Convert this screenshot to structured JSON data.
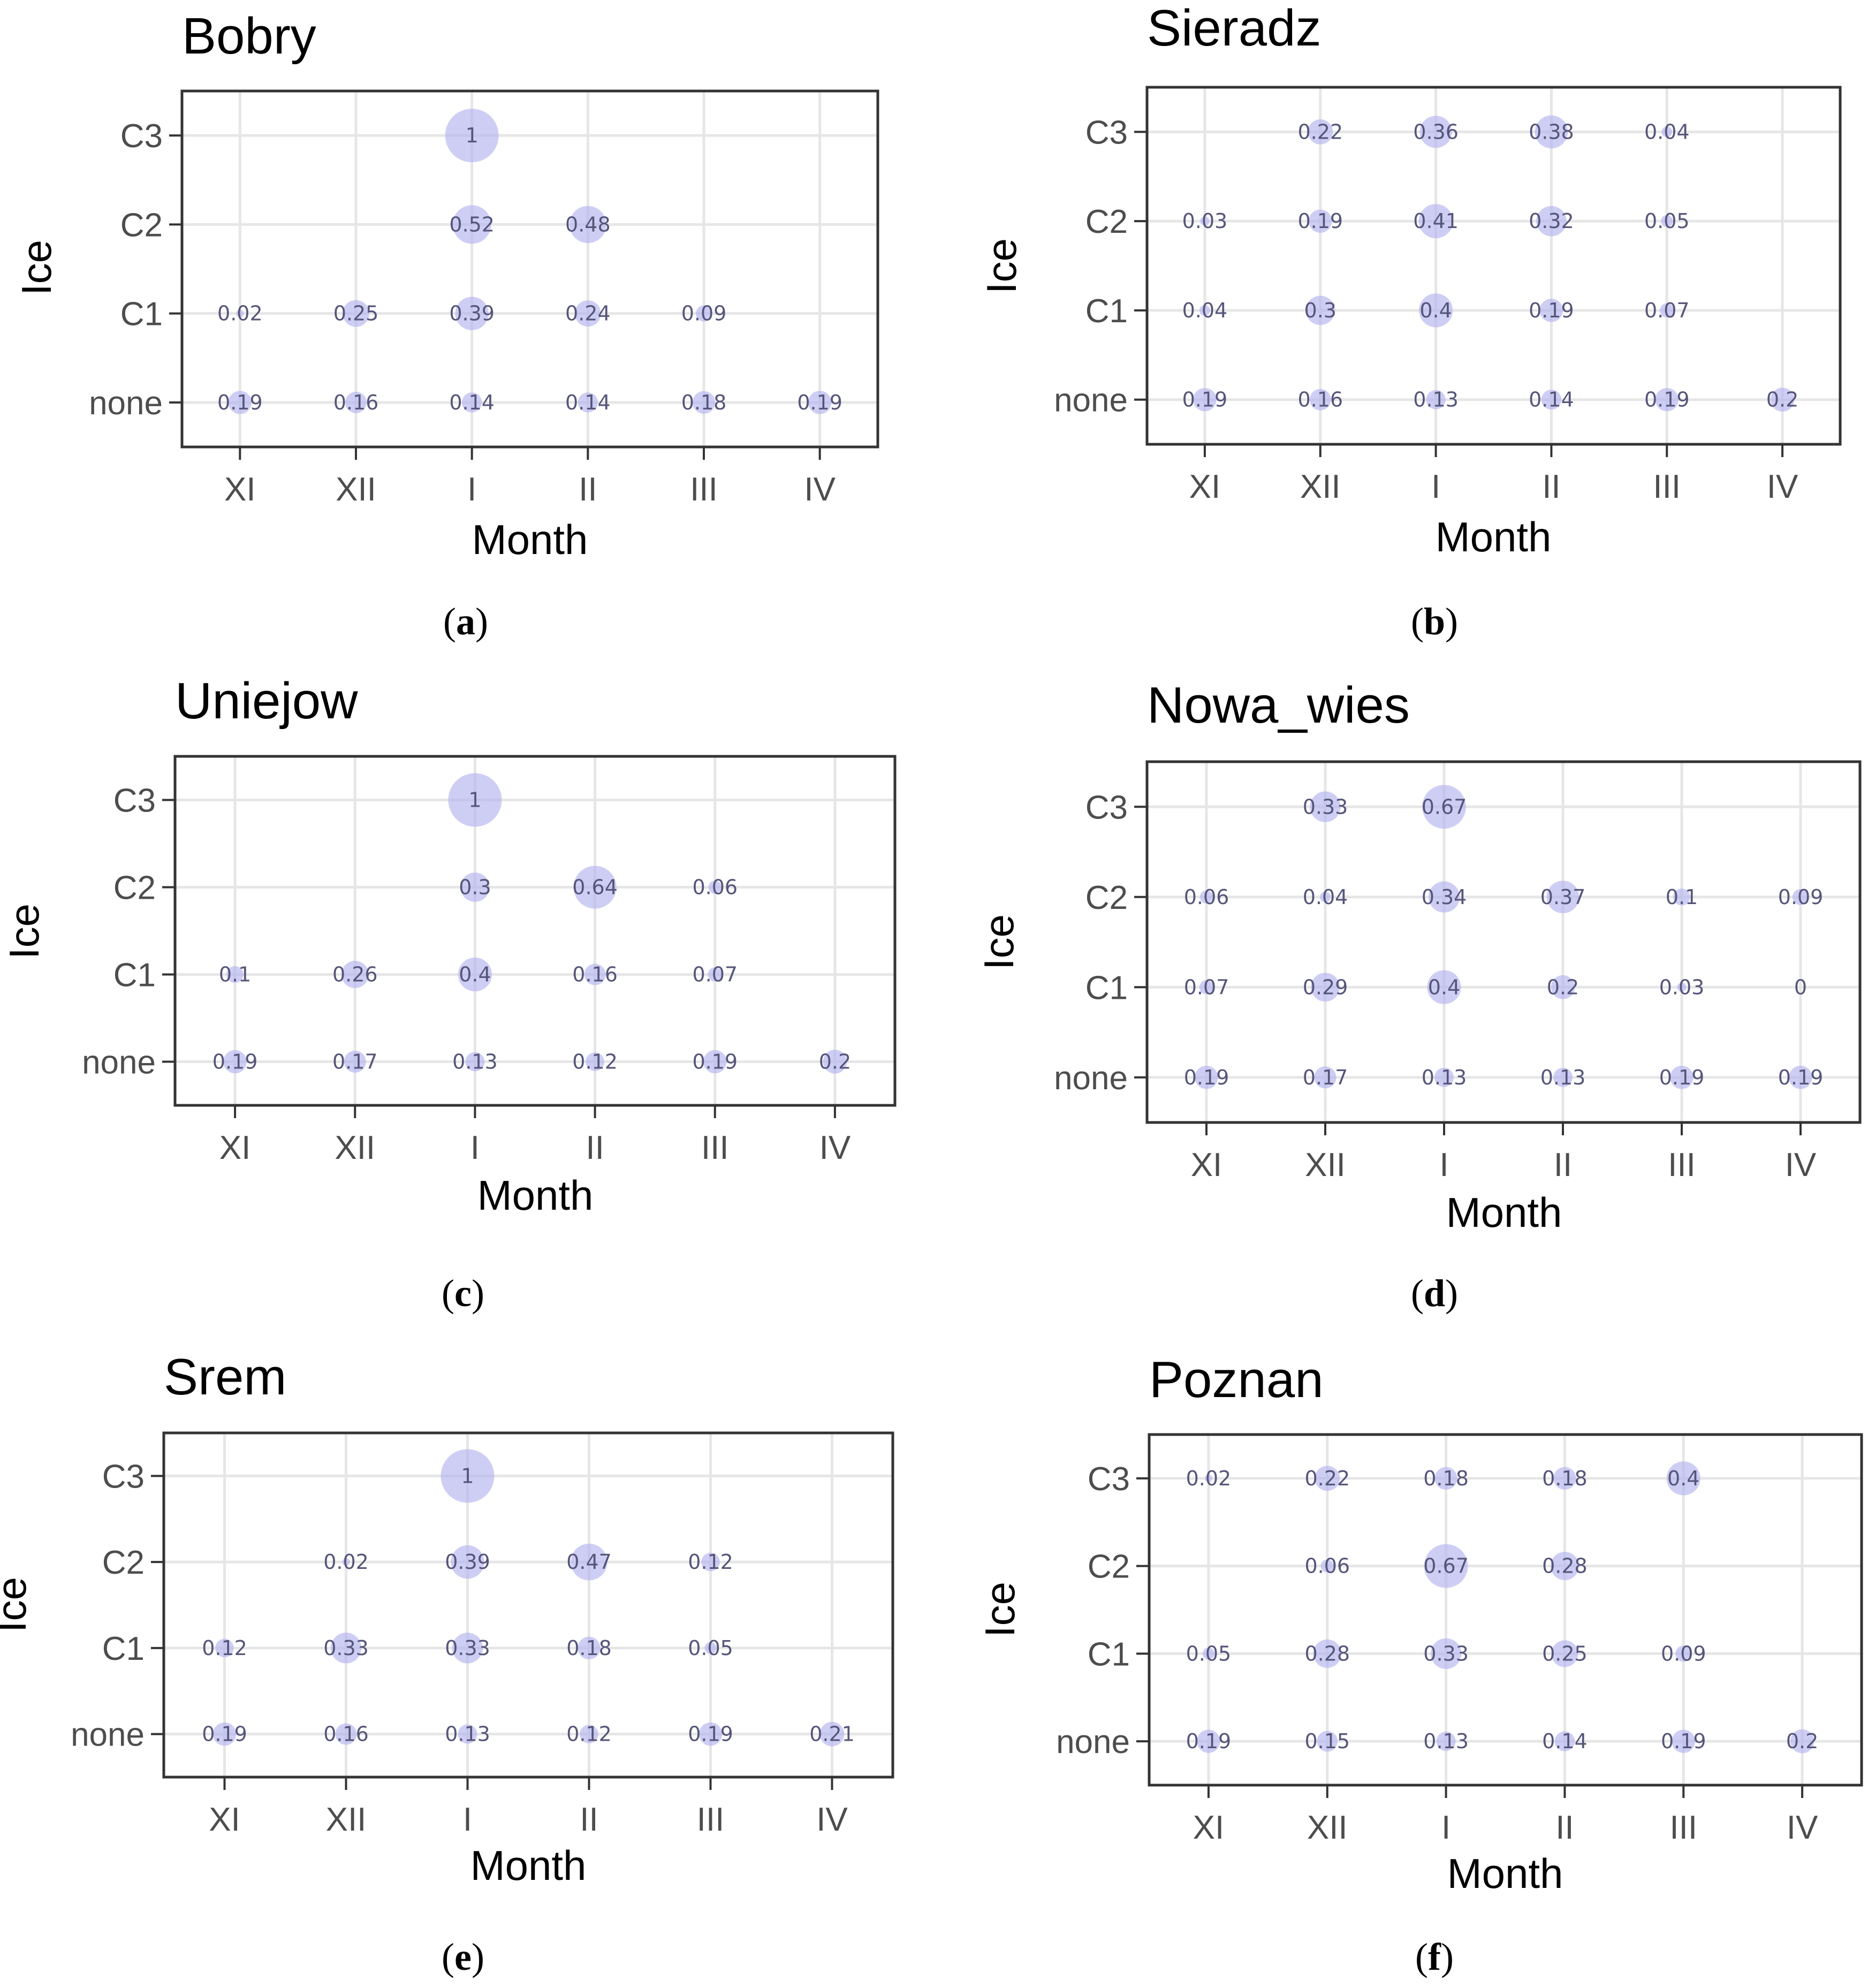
{
  "colors": {
    "bubble_fill": "#b3b3f0",
    "grid": "#e6e6e6",
    "frame": "#333333",
    "tick_text": "#4d4d4d",
    "value_text": "#55557a"
  },
  "chart_data": [
    {
      "type": "scatter",
      "title": "Bobry",
      "caption_letter": "a",
      "xlabel": "Month",
      "ylabel": "Ice",
      "x_categories": [
        "XI",
        "XII",
        "I",
        "II",
        "III",
        "IV"
      ],
      "y_categories": [
        "none",
        "C1",
        "C2",
        "C3"
      ],
      "points": [
        {
          "x": "I",
          "y": "C3",
          "value": 1,
          "label": "1"
        },
        {
          "x": "I",
          "y": "C2",
          "value": 0.52,
          "label": "0.52"
        },
        {
          "x": "II",
          "y": "C2",
          "value": 0.48,
          "label": "0.48"
        },
        {
          "x": "XI",
          "y": "C1",
          "value": 0.02,
          "label": "0.02"
        },
        {
          "x": "XII",
          "y": "C1",
          "value": 0.25,
          "label": "0.25"
        },
        {
          "x": "I",
          "y": "C1",
          "value": 0.39,
          "label": "0.39"
        },
        {
          "x": "II",
          "y": "C1",
          "value": 0.24,
          "label": "0.24"
        },
        {
          "x": "III",
          "y": "C1",
          "value": 0.09,
          "label": "0.09"
        },
        {
          "x": "XI",
          "y": "none",
          "value": 0.19,
          "label": "0.19"
        },
        {
          "x": "XII",
          "y": "none",
          "value": 0.16,
          "label": "0.16"
        },
        {
          "x": "I",
          "y": "none",
          "value": 0.14,
          "label": "0.14"
        },
        {
          "x": "II",
          "y": "none",
          "value": 0.14,
          "label": "0.14"
        },
        {
          "x": "III",
          "y": "none",
          "value": 0.18,
          "label": "0.18"
        },
        {
          "x": "IV",
          "y": "none",
          "value": 0.19,
          "label": "0.19"
        }
      ]
    },
    {
      "type": "scatter",
      "title": "Sieradz",
      "caption_letter": "b",
      "xlabel": "Month",
      "ylabel": "Ice",
      "x_categories": [
        "XI",
        "XII",
        "I",
        "II",
        "III",
        "IV"
      ],
      "y_categories": [
        "none",
        "C1",
        "C2",
        "C3"
      ],
      "points": [
        {
          "x": "XII",
          "y": "C3",
          "value": 0.22,
          "label": "0.22"
        },
        {
          "x": "I",
          "y": "C3",
          "value": 0.36,
          "label": "0.36"
        },
        {
          "x": "II",
          "y": "C3",
          "value": 0.38,
          "label": "0.38"
        },
        {
          "x": "III",
          "y": "C3",
          "value": 0.04,
          "label": "0.04"
        },
        {
          "x": "XI",
          "y": "C2",
          "value": 0.03,
          "label": "0.03"
        },
        {
          "x": "XII",
          "y": "C2",
          "value": 0.19,
          "label": "0.19"
        },
        {
          "x": "I",
          "y": "C2",
          "value": 0.41,
          "label": "0.41"
        },
        {
          "x": "II",
          "y": "C2",
          "value": 0.32,
          "label": "0.32"
        },
        {
          "x": "III",
          "y": "C2",
          "value": 0.05,
          "label": "0.05"
        },
        {
          "x": "XI",
          "y": "C1",
          "value": 0.04,
          "label": "0.04"
        },
        {
          "x": "XII",
          "y": "C1",
          "value": 0.3,
          "label": "0.3"
        },
        {
          "x": "I",
          "y": "C1",
          "value": 0.4,
          "label": "0.4"
        },
        {
          "x": "II",
          "y": "C1",
          "value": 0.19,
          "label": "0.19"
        },
        {
          "x": "III",
          "y": "C1",
          "value": 0.07,
          "label": "0.07"
        },
        {
          "x": "XI",
          "y": "none",
          "value": 0.19,
          "label": "0.19"
        },
        {
          "x": "XII",
          "y": "none",
          "value": 0.16,
          "label": "0.16"
        },
        {
          "x": "I",
          "y": "none",
          "value": 0.13,
          "label": "0.13"
        },
        {
          "x": "II",
          "y": "none",
          "value": 0.14,
          "label": "0.14"
        },
        {
          "x": "III",
          "y": "none",
          "value": 0.19,
          "label": "0.19"
        },
        {
          "x": "IV",
          "y": "none",
          "value": 0.2,
          "label": "0.2"
        }
      ]
    },
    {
      "type": "scatter",
      "title": "Uniejow",
      "caption_letter": "c",
      "xlabel": "Month",
      "ylabel": "Ice",
      "x_categories": [
        "XI",
        "XII",
        "I",
        "II",
        "III",
        "IV"
      ],
      "y_categories": [
        "none",
        "C1",
        "C2",
        "C3"
      ],
      "points": [
        {
          "x": "I",
          "y": "C3",
          "value": 1,
          "label": "1"
        },
        {
          "x": "I",
          "y": "C2",
          "value": 0.3,
          "label": "0.3"
        },
        {
          "x": "II",
          "y": "C2",
          "value": 0.64,
          "label": "0.64"
        },
        {
          "x": "III",
          "y": "C2",
          "value": 0.06,
          "label": "0.06"
        },
        {
          "x": "XI",
          "y": "C1",
          "value": 0.1,
          "label": "0.1"
        },
        {
          "x": "XII",
          "y": "C1",
          "value": 0.26,
          "label": "0.26"
        },
        {
          "x": "I",
          "y": "C1",
          "value": 0.4,
          "label": "0.4"
        },
        {
          "x": "II",
          "y": "C1",
          "value": 0.16,
          "label": "0.16"
        },
        {
          "x": "III",
          "y": "C1",
          "value": 0.07,
          "label": "0.07"
        },
        {
          "x": "XI",
          "y": "none",
          "value": 0.19,
          "label": "0.19"
        },
        {
          "x": "XII",
          "y": "none",
          "value": 0.17,
          "label": "0.17"
        },
        {
          "x": "I",
          "y": "none",
          "value": 0.13,
          "label": "0.13"
        },
        {
          "x": "II",
          "y": "none",
          "value": 0.12,
          "label": "0.12"
        },
        {
          "x": "III",
          "y": "none",
          "value": 0.19,
          "label": "0.19"
        },
        {
          "x": "IV",
          "y": "none",
          "value": 0.2,
          "label": "0.2"
        }
      ]
    },
    {
      "type": "scatter",
      "title": "Nowa_wies",
      "caption_letter": "d",
      "xlabel": "Month",
      "ylabel": "Ice",
      "x_categories": [
        "XI",
        "XII",
        "I",
        "II",
        "III",
        "IV"
      ],
      "y_categories": [
        "none",
        "C1",
        "C2",
        "C3"
      ],
      "points": [
        {
          "x": "XII",
          "y": "C3",
          "value": 0.33,
          "label": "0.33"
        },
        {
          "x": "I",
          "y": "C3",
          "value": 0.67,
          "label": "0.67"
        },
        {
          "x": "XI",
          "y": "C2",
          "value": 0.06,
          "label": "0.06"
        },
        {
          "x": "XII",
          "y": "C2",
          "value": 0.04,
          "label": "0.04"
        },
        {
          "x": "I",
          "y": "C2",
          "value": 0.34,
          "label": "0.34"
        },
        {
          "x": "II",
          "y": "C2",
          "value": 0.37,
          "label": "0.37"
        },
        {
          "x": "III",
          "y": "C2",
          "value": 0.1,
          "label": "0.1"
        },
        {
          "x": "IV",
          "y": "C2",
          "value": 0.09,
          "label": "0.09"
        },
        {
          "x": "XI",
          "y": "C1",
          "value": 0.07,
          "label": "0.07"
        },
        {
          "x": "XII",
          "y": "C1",
          "value": 0.29,
          "label": "0.29"
        },
        {
          "x": "I",
          "y": "C1",
          "value": 0.4,
          "label": "0.4"
        },
        {
          "x": "II",
          "y": "C1",
          "value": 0.2,
          "label": "0.2"
        },
        {
          "x": "III",
          "y": "C1",
          "value": 0.03,
          "label": "0.03"
        },
        {
          "x": "IV",
          "y": "C1",
          "value": 0,
          "label": "0"
        },
        {
          "x": "XI",
          "y": "none",
          "value": 0.19,
          "label": "0.19"
        },
        {
          "x": "XII",
          "y": "none",
          "value": 0.17,
          "label": "0.17"
        },
        {
          "x": "I",
          "y": "none",
          "value": 0.13,
          "label": "0.13"
        },
        {
          "x": "II",
          "y": "none",
          "value": 0.13,
          "label": "0.13"
        },
        {
          "x": "III",
          "y": "none",
          "value": 0.19,
          "label": "0.19"
        },
        {
          "x": "IV",
          "y": "none",
          "value": 0.19,
          "label": "0.19"
        }
      ]
    },
    {
      "type": "scatter",
      "title": "Srem",
      "caption_letter": "e",
      "xlabel": "Month",
      "ylabel": "Ice",
      "x_categories": [
        "XI",
        "XII",
        "I",
        "II",
        "III",
        "IV"
      ],
      "y_categories": [
        "none",
        "C1",
        "C2",
        "C3"
      ],
      "points": [
        {
          "x": "I",
          "y": "C3",
          "value": 1,
          "label": "1"
        },
        {
          "x": "XII",
          "y": "C2",
          "value": 0.02,
          "label": "0.02"
        },
        {
          "x": "I",
          "y": "C2",
          "value": 0.39,
          "label": "0.39"
        },
        {
          "x": "II",
          "y": "C2",
          "value": 0.47,
          "label": "0.47"
        },
        {
          "x": "III",
          "y": "C2",
          "value": 0.12,
          "label": "0.12"
        },
        {
          "x": "XI",
          "y": "C1",
          "value": 0.12,
          "label": "0.12"
        },
        {
          "x": "XII",
          "y": "C1",
          "value": 0.33,
          "label": "0.33"
        },
        {
          "x": "I",
          "y": "C1",
          "value": 0.33,
          "label": "0.33"
        },
        {
          "x": "II",
          "y": "C1",
          "value": 0.18,
          "label": "0.18"
        },
        {
          "x": "III",
          "y": "C1",
          "value": 0.05,
          "label": "0.05"
        },
        {
          "x": "XI",
          "y": "none",
          "value": 0.19,
          "label": "0.19"
        },
        {
          "x": "XII",
          "y": "none",
          "value": 0.16,
          "label": "0.16"
        },
        {
          "x": "I",
          "y": "none",
          "value": 0.13,
          "label": "0.13"
        },
        {
          "x": "II",
          "y": "none",
          "value": 0.12,
          "label": "0.12"
        },
        {
          "x": "III",
          "y": "none",
          "value": 0.19,
          "label": "0.19"
        },
        {
          "x": "IV",
          "y": "none",
          "value": 0.21,
          "label": "0.21"
        }
      ]
    },
    {
      "type": "scatter",
      "title": "Poznan",
      "caption_letter": "f",
      "xlabel": "Month",
      "ylabel": "Ice",
      "x_categories": [
        "XI",
        "XII",
        "I",
        "II",
        "III",
        "IV"
      ],
      "y_categories": [
        "none",
        "C1",
        "C2",
        "C3"
      ],
      "points": [
        {
          "x": "XI",
          "y": "C3",
          "value": 0.02,
          "label": "0.02"
        },
        {
          "x": "XII",
          "y": "C3",
          "value": 0.22,
          "label": "0.22"
        },
        {
          "x": "I",
          "y": "C3",
          "value": 0.18,
          "label": "0.18"
        },
        {
          "x": "II",
          "y": "C3",
          "value": 0.18,
          "label": "0.18"
        },
        {
          "x": "III",
          "y": "C3",
          "value": 0.4,
          "label": "0.4"
        },
        {
          "x": "XII",
          "y": "C2",
          "value": 0.06,
          "label": "0.06"
        },
        {
          "x": "I",
          "y": "C2",
          "value": 0.67,
          "label": "0.67"
        },
        {
          "x": "II",
          "y": "C2",
          "value": 0.28,
          "label": "0.28"
        },
        {
          "x": "XI",
          "y": "C1",
          "value": 0.05,
          "label": "0.05"
        },
        {
          "x": "XII",
          "y": "C1",
          "value": 0.28,
          "label": "0.28"
        },
        {
          "x": "I",
          "y": "C1",
          "value": 0.33,
          "label": "0.33"
        },
        {
          "x": "II",
          "y": "C1",
          "value": 0.25,
          "label": "0.25"
        },
        {
          "x": "III",
          "y": "C1",
          "value": 0.09,
          "label": "0.09"
        },
        {
          "x": "XI",
          "y": "none",
          "value": 0.19,
          "label": "0.19"
        },
        {
          "x": "XII",
          "y": "none",
          "value": 0.15,
          "label": "0.15"
        },
        {
          "x": "I",
          "y": "none",
          "value": 0.13,
          "label": "0.13"
        },
        {
          "x": "II",
          "y": "none",
          "value": 0.14,
          "label": "0.14"
        },
        {
          "x": "III",
          "y": "none",
          "value": 0.19,
          "label": "0.19"
        },
        {
          "x": "IV",
          "y": "none",
          "value": 0.2,
          "label": "0.2"
        }
      ]
    }
  ]
}
